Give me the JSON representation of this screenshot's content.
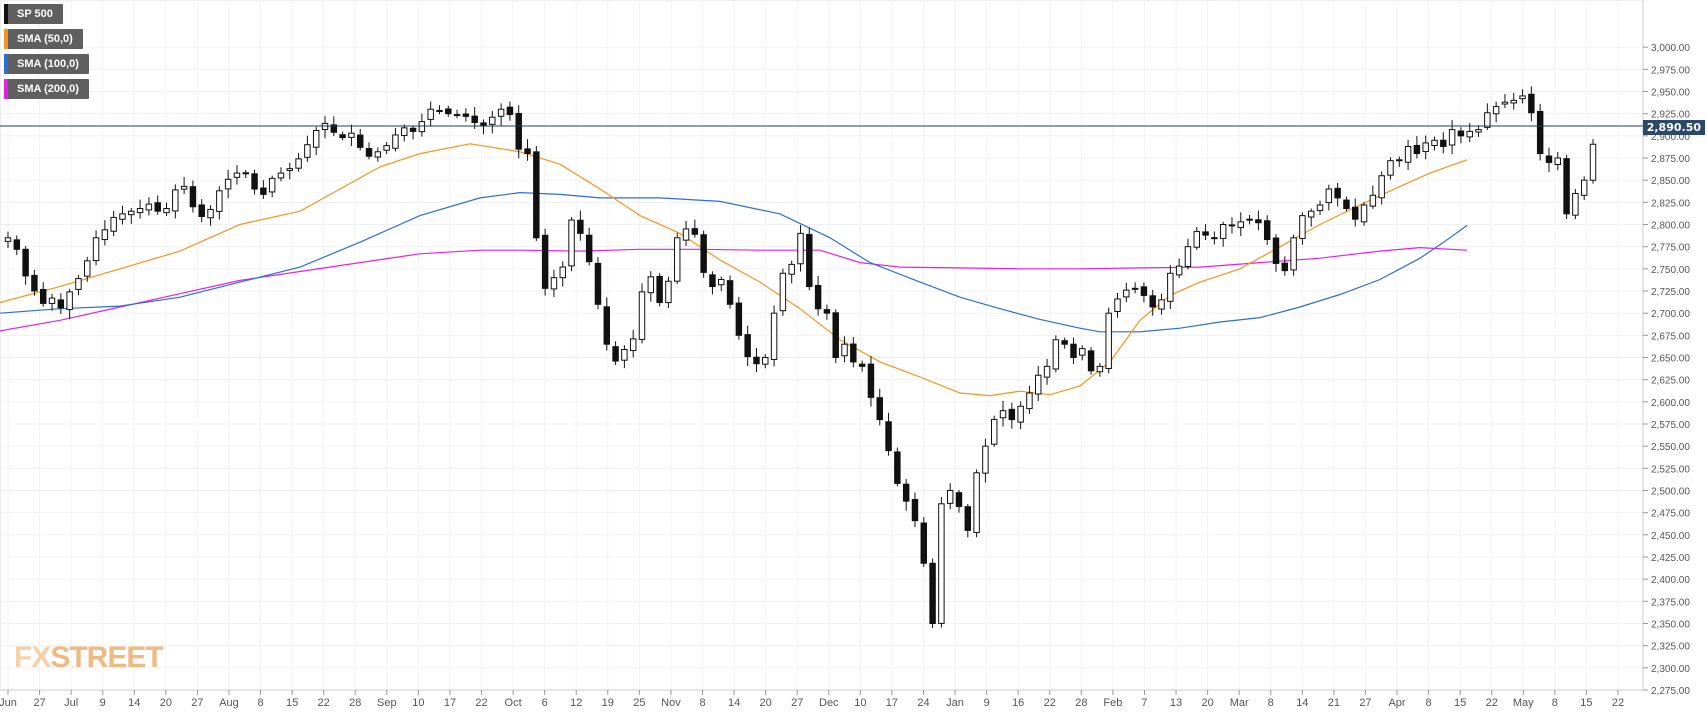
{
  "legend": [
    {
      "label": "SP 500",
      "color": "#111111"
    },
    {
      "label": "SMA (50,0)",
      "color": "#f7931e"
    },
    {
      "label": "SMA (100,0)",
      "color": "#2c6ed5"
    },
    {
      "label": "SMA (200,0)",
      "color": "#e81ee8"
    }
  ],
  "logo": {
    "fx": "FX",
    "street": "STREET"
  },
  "last_price_label": "2,890.50",
  "chart_data": {
    "type": "candlestick",
    "title": "",
    "ylim": [
      2275,
      3025
    ],
    "y_ticks": [
      "2,275.00",
      "2,300.00",
      "2,325.00",
      "2,350.00",
      "2,375.00",
      "2,400.00",
      "2,425.00",
      "2,450.00",
      "2,475.00",
      "2,500.00",
      "2,525.00",
      "2,550.00",
      "2,575.00",
      "2,600.00",
      "2,625.00",
      "2,650.00",
      "2,675.00",
      "2,700.00",
      "2,725.00",
      "2,750.00",
      "2,775.00",
      "2,800.00",
      "2,825.00",
      "2,850.00",
      "2,875.00",
      "2,900.00",
      "2,925.00",
      "2,950.00",
      "2,975.00",
      "3,000.00"
    ],
    "x_ticks": [
      "Jun",
      "27",
      "Jul",
      "9",
      "14",
      "20",
      "27",
      "Aug",
      "8",
      "15",
      "22",
      "28",
      "Sep",
      "10",
      "17",
      "22",
      "Oct",
      "6",
      "12",
      "19",
      "25",
      "Nov",
      "8",
      "14",
      "20",
      "27",
      "Dec",
      "10",
      "17",
      "24",
      "Jan",
      "9",
      "16",
      "22",
      "28",
      "Feb",
      "7",
      "13",
      "20",
      "Mar",
      "8",
      "14",
      "21",
      "27",
      "Apr",
      "8",
      "15",
      "22",
      "May",
      "8",
      "15",
      "22"
    ],
    "last_price": 2890.5,
    "closes": [
      2785,
      2772,
      2742,
      2725,
      2711,
      2717,
      2706,
      2724,
      2739,
      2759,
      2785,
      2794,
      2808,
      2812,
      2815,
      2818,
      2823,
      2815,
      2818,
      2839,
      2843,
      2820,
      2809,
      2817,
      2838,
      2851,
      2858,
      2858,
      2840,
      2834,
      2852,
      2858,
      2863,
      2874,
      2890,
      2906,
      2914,
      2904,
      2898,
      2903,
      2887,
      2877,
      2882,
      2889,
      2901,
      2909,
      2905,
      2916,
      2930,
      2928,
      2925,
      2924,
      2922,
      2915,
      2912,
      2921,
      2930,
      2924,
      2885,
      2880,
      2785,
      2728,
      2740,
      2752,
      2805,
      2790,
      2758,
      2710,
      2665,
      2646,
      2659,
      2671,
      2724,
      2741,
      2712,
      2736,
      2785,
      2795,
      2789,
      2746,
      2730,
      2738,
      2710,
      2675,
      2651,
      2643,
      2650,
      2700,
      2745,
      2755,
      2790,
      2730,
      2705,
      2700,
      2650,
      2665,
      2645,
      2640,
      2605,
      2580,
      2545,
      2508,
      2488,
      2466,
      2418,
      2350,
      2485,
      2500,
      2482,
      2455,
      2520,
      2550,
      2580,
      2590,
      2580,
      2595,
      2610,
      2630,
      2640,
      2670,
      2665,
      2650,
      2660,
      2635,
      2640,
      2700,
      2716,
      2726,
      2728,
      2720,
      2707,
      2715,
      2745,
      2753,
      2775,
      2792,
      2788,
      2784,
      2800,
      2799,
      2803,
      2806,
      2802,
      2783,
      2756,
      2748,
      2785,
      2810,
      2815,
      2822,
      2840,
      2830,
      2818,
      2806,
      2822,
      2833,
      2855,
      2872,
      2873,
      2888,
      2880,
      2892,
      2895,
      2888,
      2907,
      2900,
      2905,
      2907,
      2926,
      2933,
      2938,
      2940,
      2945,
      2926,
      2880,
      2870,
      2875,
      2812,
      2835,
      2850,
      2890.5
    ],
    "sma_50": [
      [
        0,
        2712
      ],
      [
        60,
        2730
      ],
      [
        120,
        2750
      ],
      [
        180,
        2770
      ],
      [
        240,
        2800
      ],
      [
        300,
        2815
      ],
      [
        340,
        2840
      ],
      [
        380,
        2865
      ],
      [
        420,
        2880
      ],
      [
        470,
        2891
      ],
      [
        520,
        2882
      ],
      [
        560,
        2868
      ],
      [
        600,
        2840
      ],
      [
        640,
        2810
      ],
      [
        680,
        2790
      ],
      [
        720,
        2760
      ],
      [
        760,
        2735
      ],
      [
        800,
        2705
      ],
      [
        840,
        2670
      ],
      [
        880,
        2645
      ],
      [
        920,
        2628
      ],
      [
        960,
        2610
      ],
      [
        990,
        2607
      ],
      [
        1020,
        2612
      ],
      [
        1050,
        2608
      ],
      [
        1080,
        2618
      ],
      [
        1110,
        2645
      ],
      [
        1140,
        2692
      ],
      [
        1170,
        2720
      ],
      [
        1200,
        2735
      ],
      [
        1240,
        2750
      ],
      [
        1280,
        2775
      ],
      [
        1320,
        2800
      ],
      [
        1360,
        2822
      ],
      [
        1400,
        2843
      ],
      [
        1430,
        2858
      ],
      [
        1467,
        2873
      ]
    ],
    "sma_100": [
      [
        0,
        2700
      ],
      [
        60,
        2705
      ],
      [
        120,
        2708
      ],
      [
        180,
        2718
      ],
      [
        240,
        2735
      ],
      [
        300,
        2752
      ],
      [
        360,
        2780
      ],
      [
        420,
        2810
      ],
      [
        480,
        2830
      ],
      [
        520,
        2836
      ],
      [
        560,
        2834
      ],
      [
        600,
        2830
      ],
      [
        660,
        2830
      ],
      [
        720,
        2826
      ],
      [
        780,
        2812
      ],
      [
        830,
        2785
      ],
      [
        870,
        2757
      ],
      [
        920,
        2735
      ],
      [
        960,
        2718
      ],
      [
        1000,
        2705
      ],
      [
        1040,
        2693
      ],
      [
        1080,
        2683
      ],
      [
        1100,
        2679
      ],
      [
        1140,
        2679
      ],
      [
        1180,
        2683
      ],
      [
        1220,
        2690
      ],
      [
        1260,
        2695
      ],
      [
        1300,
        2707
      ],
      [
        1340,
        2721
      ],
      [
        1380,
        2738
      ],
      [
        1420,
        2762
      ],
      [
        1445,
        2781
      ],
      [
        1467,
        2799
      ]
    ],
    "sma_200": [
      [
        0,
        2680
      ],
      [
        60,
        2692
      ],
      [
        120,
        2707
      ],
      [
        180,
        2722
      ],
      [
        240,
        2737
      ],
      [
        300,
        2747
      ],
      [
        360,
        2757
      ],
      [
        420,
        2767
      ],
      [
        480,
        2771
      ],
      [
        520,
        2771
      ],
      [
        580,
        2770
      ],
      [
        640,
        2772
      ],
      [
        700,
        2772
      ],
      [
        760,
        2771
      ],
      [
        820,
        2771
      ],
      [
        860,
        2757
      ],
      [
        900,
        2752
      ],
      [
        960,
        2751
      ],
      [
        1020,
        2750
      ],
      [
        1080,
        2750
      ],
      [
        1140,
        2751
      ],
      [
        1200,
        2752
      ],
      [
        1260,
        2757
      ],
      [
        1320,
        2762
      ],
      [
        1380,
        2770
      ],
      [
        1420,
        2774
      ],
      [
        1467,
        2771
      ]
    ]
  }
}
